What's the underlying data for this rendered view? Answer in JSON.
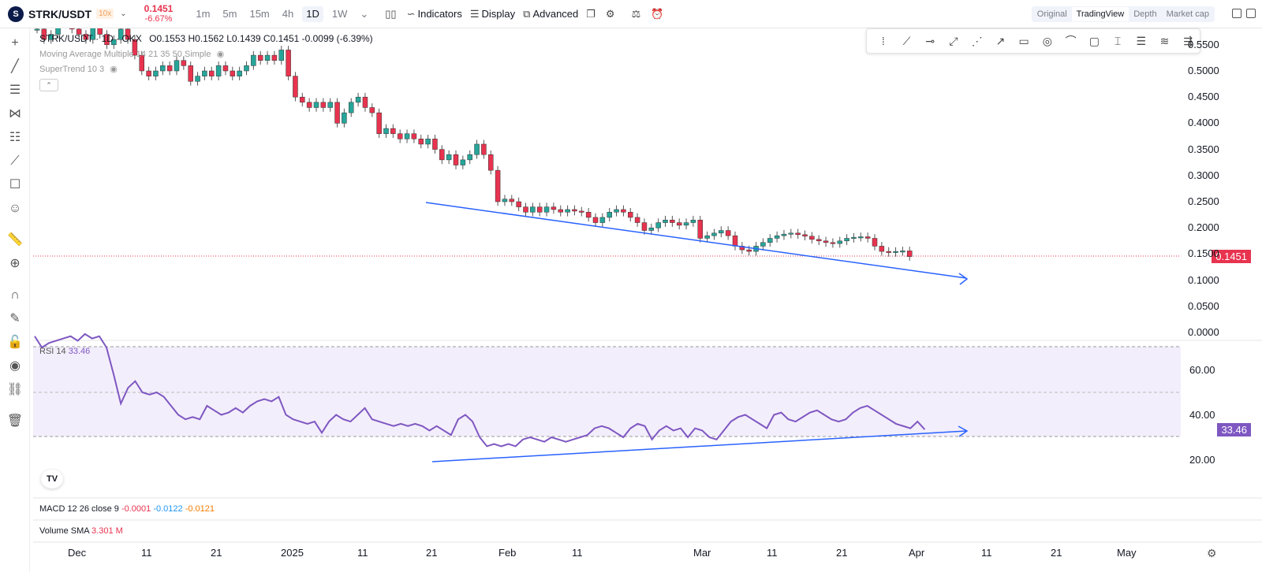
{
  "header": {
    "logo_letter": "S",
    "symbol": "STRK/USDT",
    "leverage": "10x",
    "last_price": "0.1451",
    "change_pct": "-6.67%",
    "timeframes": [
      "1m",
      "5m",
      "15m",
      "4h",
      "1D",
      "1W"
    ],
    "active_timeframe": "1D",
    "indicators_label": "Indicators",
    "display_label": "Display",
    "advanced_label": "Advanced",
    "view_tabs": [
      "Original",
      "TradingView",
      "Depth",
      "Market cap"
    ],
    "active_view": "TradingView"
  },
  "legend": {
    "title": "STRK/USDT · 1D · OKX",
    "ohlc": "O0.1553 H0.1562 L0.1439 C0.1451 -0.0099 (-6.39%)",
    "ma": "Moving Average Multiple 14 21 35 50 Simple",
    "supertrend": "SuperTrend 10 3"
  },
  "rsi": {
    "label": "RSI 14",
    "value": "33.46"
  },
  "macd": {
    "label": "MACD 12 26 close 9",
    "v1": "-0.0001",
    "v2": "-0.0122",
    "v3": "-0.0121"
  },
  "volume": {
    "label": "Volume SMA",
    "value": "3.301 M"
  },
  "price_tag": "0.1451",
  "rsi_tag": "33.46",
  "price_axis": [
    "0.5500",
    "0.5000",
    "0.4500",
    "0.4000",
    "0.3500",
    "0.3000",
    "0.2500",
    "0.2000",
    "0.1500",
    "0.1000",
    "0.0500",
    "0.0000"
  ],
  "rsi_axis": [
    "60.00",
    "40.00",
    "20.00"
  ],
  "time_axis": [
    "Dec",
    "11",
    "21",
    "2025",
    "11",
    "21",
    "Feb",
    "11",
    "Mar",
    "11",
    "21",
    "Apr",
    "11",
    "21",
    "May"
  ],
  "tv_logo": "TV",
  "colors": {
    "up": "#26a69a",
    "down": "#e8334f",
    "rsi": "#7e57c2",
    "trend": "#2962ff"
  },
  "left_tools": [
    "crosshair-icon",
    "trendline-icon",
    "fib-icon",
    "pattern-icon",
    "measure-lines-icon",
    "brush-icon",
    "comment-icon",
    "emoji-icon",
    "ruler-icon",
    "zoom-icon",
    "magnet-icon",
    "pencil-lock-icon",
    "lock-icon",
    "eye-icon",
    "link-icon",
    "trash-icon"
  ],
  "draw_tools": [
    "drag-handle-icon",
    "line-icon",
    "horizontal-ray-icon",
    "path-icon",
    "polyline-icon",
    "arrow-icon",
    "rectangle-icon",
    "circle-icon",
    "curve-icon",
    "callout-icon",
    "text-cursor-icon",
    "lines-icon",
    "fan-icon",
    "channel-icon"
  ]
}
